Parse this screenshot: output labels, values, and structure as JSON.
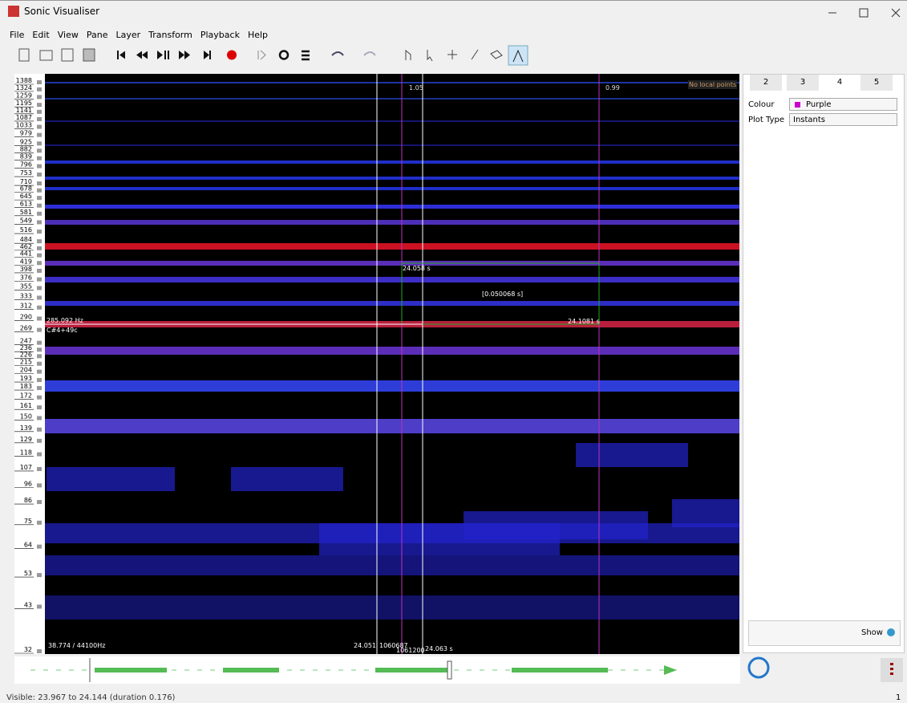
{
  "window": {
    "title": "Sonic Visualiser"
  },
  "menu": [
    "File",
    "Edit",
    "View",
    "Pane",
    "Layer",
    "Transform",
    "Playback",
    "Help"
  ],
  "pane": {
    "keyboard_labels": [
      1388,
      1324,
      1259,
      1195,
      1141,
      1087,
      1033,
      979,
      925,
      882,
      839,
      796,
      753,
      710,
      678,
      645,
      613,
      581,
      549,
      516,
      484,
      462,
      441,
      419,
      398,
      376,
      355,
      333,
      312,
      290,
      269,
      247,
      236,
      226,
      215,
      204,
      193,
      183,
      172,
      161,
      150,
      139,
      129,
      118,
      107,
      96,
      86,
      75,
      64,
      53,
      43,
      32
    ],
    "scale_top": "1.05",
    "scale_right": "0.99",
    "no_points": "No local points",
    "sel_start": "24.058 s",
    "sel_duration": "[0.050068 s]",
    "sel_end": "24.1081 s",
    "cursor_freq": "285.092 Hz",
    "cursor_pitch": "C#4+49c",
    "bin_info": "38.774 / 44100Hz",
    "time_left": "24.051",
    "frame_left": "1060687",
    "frame_right": "1061200",
    "time_right": "24.063 s"
  },
  "panel": {
    "tabs": [
      "2",
      "3",
      "4",
      "5"
    ],
    "colour_label": "Colour",
    "colour_value": "Purple",
    "plot_type_label": "Plot Type",
    "plot_type_value": "Instants",
    "show_label": "Show"
  },
  "status": {
    "text": "Visible: 23.967 to 24.144 (duration 0.176)",
    "page": "1"
  }
}
